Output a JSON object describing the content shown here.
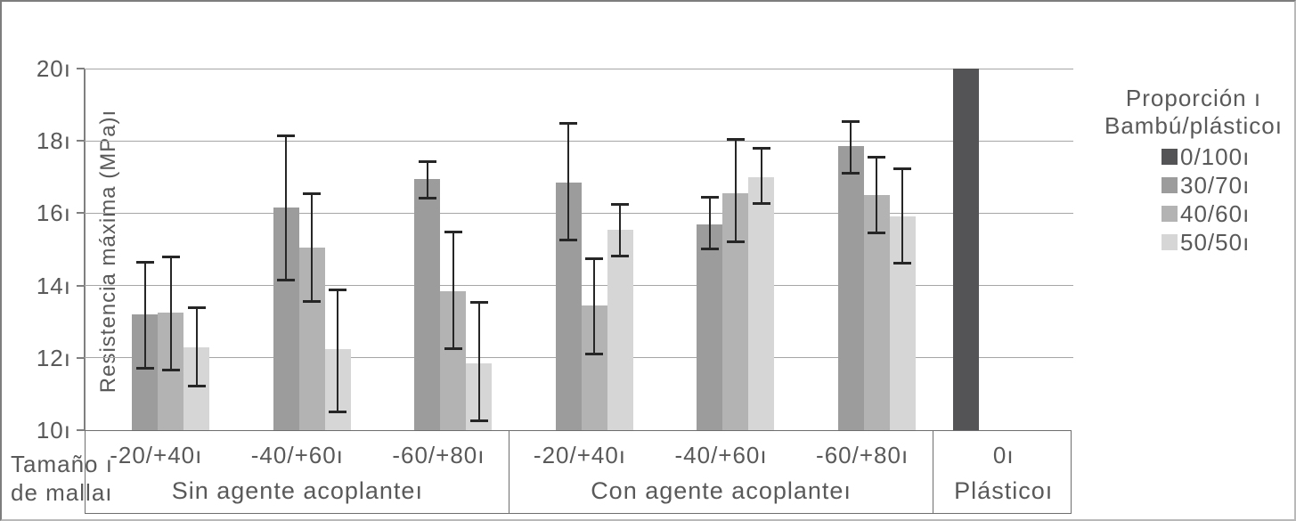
{
  "corner_label": {
    "line1": "Tamaño ı",
    "line2": "de mallaı"
  },
  "legend": {
    "title_line1": "Proporción ı",
    "title_line2": "Bambú/plásticoı"
  },
  "colors": {
    "grid": "#a6a6a6",
    "axis": "#7f7f7f",
    "text": "#595959",
    "error_bar": "#262626",
    "series_0_100": "#545456",
    "series_30_70": "#9c9c9c",
    "series_40_60": "#b3b3b3",
    "series_50_50": "#d6d6d6"
  },
  "chart_data": {
    "type": "bar",
    "title": "",
    "xlabel": "Tamaño de malla",
    "ylabel": "Resistencia máxima (MPa)ı",
    "ylim": [
      10,
      20
    ],
    "grid": true,
    "legend_position": "right",
    "y_ticks": [
      {
        "label": "10ı",
        "value": 10
      },
      {
        "label": "12ı",
        "value": 12
      },
      {
        "label": "14ı",
        "value": 14
      },
      {
        "label": "16ı",
        "value": 16
      },
      {
        "label": "18ı",
        "value": 18
      },
      {
        "label": "20ı",
        "value": 20
      }
    ],
    "sections": [
      {
        "label": "Sin agente acoplanteı",
        "slots": 3
      },
      {
        "label": "Con agente acoplanteı",
        "slots": 3
      },
      {
        "label": "Plásticoı",
        "slots": 1
      }
    ],
    "categories": [
      "-20/+40ı",
      "-40/+60ı",
      "-60/+80ı",
      "-20/+40ı",
      "-40/+60ı",
      "-60/+80ı",
      "0ı"
    ],
    "series": [
      {
        "name": "0/100ı",
        "color": "#545456",
        "values": [
          null,
          null,
          null,
          null,
          null,
          null,
          20
        ],
        "errors": [
          null,
          null,
          null,
          null,
          null,
          null,
          null
        ]
      },
      {
        "name": "30/70ı",
        "color": "#9c9c9c",
        "values": [
          13.2,
          16.15,
          16.95,
          16.85,
          15.7,
          17.85,
          null
        ],
        "errors": [
          [
            11.7,
            14.65
          ],
          [
            14.15,
            18.15
          ],
          [
            16.4,
            17.45
          ],
          [
            15.25,
            18.5
          ],
          [
            15.0,
            16.45
          ],
          [
            17.1,
            18.55
          ],
          null
        ]
      },
      {
        "name": "40/60ı",
        "color": "#b3b3b3",
        "values": [
          13.25,
          15.05,
          13.85,
          13.45,
          16.55,
          16.5,
          null
        ],
        "errors": [
          [
            11.65,
            14.8
          ],
          [
            13.55,
            16.55
          ],
          [
            12.25,
            15.5
          ],
          [
            12.1,
            14.75
          ],
          [
            15.2,
            18.05
          ],
          [
            15.45,
            17.55
          ],
          null
        ]
      },
      {
        "name": "50/50ı",
        "color": "#d6d6d6",
        "values": [
          12.3,
          12.25,
          11.85,
          15.55,
          17.0,
          15.9,
          null
        ],
        "errors": [
          [
            11.2,
            13.4
          ],
          [
            10.5,
            13.9
          ],
          [
            10.25,
            13.55
          ],
          [
            14.8,
            16.25
          ],
          [
            16.25,
            17.8
          ],
          [
            14.6,
            17.25
          ],
          null
        ]
      }
    ]
  }
}
